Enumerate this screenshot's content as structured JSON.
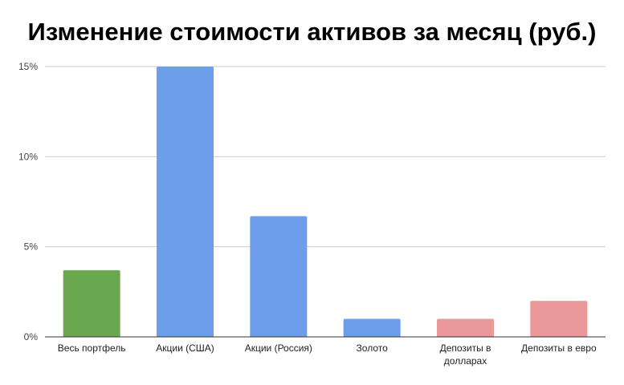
{
  "chart_data": {
    "type": "bar",
    "title": "Изменение стоимости активов за месяц (руб.)",
    "xlabel": "",
    "ylabel": "",
    "categories": [
      "Весь портфель",
      "Акции (США)",
      "Акции (Россия)",
      "Золото",
      "Депозиты в долларах",
      "Депозиты в евро"
    ],
    "values": [
      3.7,
      15.0,
      6.7,
      1.0,
      1.0,
      2.0
    ],
    "bar_colors": [
      "#6aa84f",
      "#6d9eeb",
      "#6d9eeb",
      "#6d9eeb",
      "#ea9999",
      "#ea9999"
    ],
    "ylim": [
      0,
      15
    ],
    "yticks": [
      0,
      5,
      10,
      15
    ],
    "ytick_labels": [
      "0%",
      "5%",
      "10%",
      "15%"
    ],
    "grid": true,
    "legend": "none"
  }
}
